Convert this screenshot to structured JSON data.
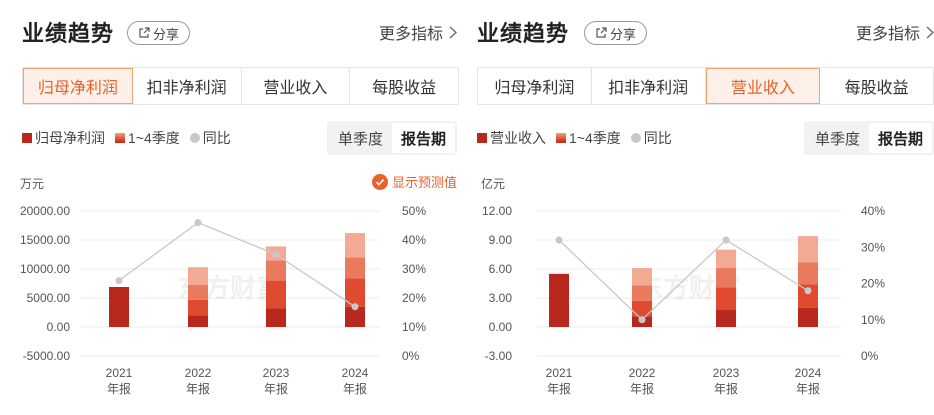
{
  "panels": [
    {
      "title": "业绩趋势",
      "share_label": "分享",
      "more_label": "更多指标",
      "tabs": [
        {
          "label": "归母净利润",
          "active": true
        },
        {
          "label": "扣非净利润",
          "active": false
        },
        {
          "label": "营业收入",
          "active": false
        },
        {
          "label": "每股收益",
          "active": false
        }
      ],
      "legend": {
        "solid": "归母净利润",
        "gradient": "1~4季度",
        "dot": "同比"
      },
      "period": {
        "options": [
          "单季度",
          "报告期"
        ],
        "selected": "报告期"
      },
      "unit": "万元",
      "forecast_label": "显示预测值",
      "watermark": "东方财富"
    },
    {
      "title": "业绩趋势",
      "share_label": "分享",
      "more_label": "更多指标",
      "tabs": [
        {
          "label": "归母净利润",
          "active": false
        },
        {
          "label": "扣非净利润",
          "active": false
        },
        {
          "label": "营业收入",
          "active": true
        },
        {
          "label": "每股收益",
          "active": false
        }
      ],
      "legend": {
        "solid": "营业收入",
        "gradient": "1~4季度",
        "dot": "同比"
      },
      "period": {
        "options": [
          "单季度",
          "报告期"
        ],
        "selected": "报告期"
      },
      "unit": "亿元",
      "forecast_label": "",
      "watermark": "东方财富"
    }
  ],
  "colors": {
    "accent": "#e8622a",
    "bar_dark": "#b8281e",
    "bar_q3": "#e04a2e",
    "bar_q2": "#ea7a5e",
    "bar_q1": "#f2aa94",
    "yoy_line": "#c8c8c8"
  },
  "chart_data": [
    {
      "type": "bar",
      "categories": [
        "2021\n年报",
        "2022\n年报",
        "2023\n年报",
        "2024\n年报"
      ],
      "y_ticks": [
        "20000.00",
        "15000.00",
        "10000.00",
        "5000.00",
        "0.00",
        "-5000.00"
      ],
      "y2_ticks": [
        "50%",
        "40%",
        "30%",
        "20%",
        "10%",
        "0%"
      ],
      "ylim": [
        -5000,
        20000
      ],
      "y2lim": [
        0,
        50
      ],
      "stacks": [
        [
          6900
        ],
        [
          2000,
          2700,
          2600,
          3000
        ],
        [
          3200,
          4800,
          3500,
          2400
        ],
        [
          3500,
          4900,
          3600,
          4200
        ]
      ],
      "yoy": [
        26,
        46,
        35,
        17
      ]
    },
    {
      "type": "bar",
      "categories": [
        "2021\n年报",
        "2022\n年报",
        "2023\n年报",
        "2024\n年报"
      ],
      "y_ticks": [
        "12.00",
        "9.00",
        "6.00",
        "3.00",
        "0.00",
        "-3.00"
      ],
      "y2_ticks": [
        "40%",
        "30%",
        "20%",
        "10%",
        "0%"
      ],
      "ylim": [
        -3,
        12
      ],
      "y2lim": [
        0,
        40
      ],
      "stacks": [
        [
          5.5
        ],
        [
          1.1,
          1.6,
          1.6,
          1.8
        ],
        [
          1.8,
          2.3,
          2.0,
          1.9
        ],
        [
          2.0,
          2.4,
          2.3,
          2.7
        ]
      ],
      "yoy": [
        32,
        10,
        32,
        18
      ]
    }
  ]
}
